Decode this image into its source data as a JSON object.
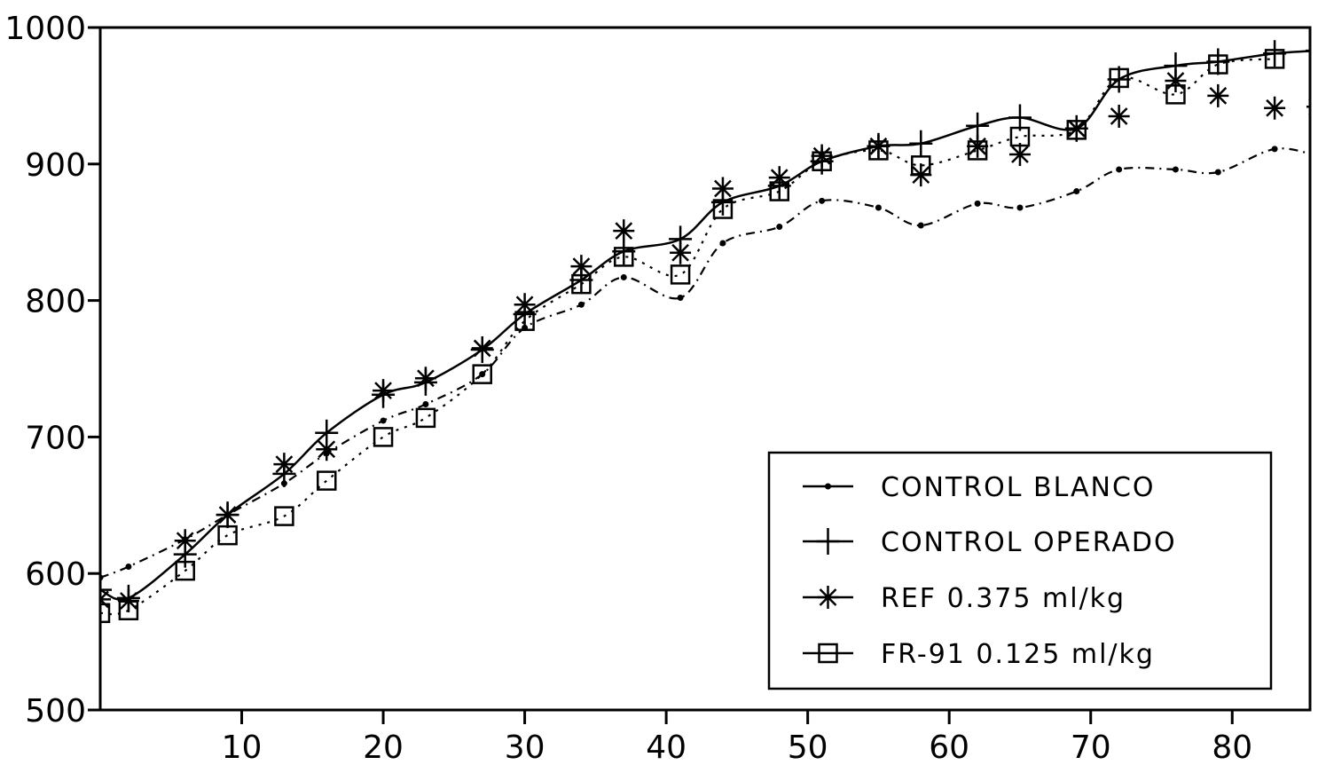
{
  "chart_data": {
    "type": "line",
    "title": "",
    "xlabel": "",
    "ylabel": "",
    "xlim": [
      0,
      85.5
    ],
    "ylim": [
      500,
      1000
    ],
    "x_ticks": [
      10,
      20,
      30,
      40,
      50,
      60,
      70,
      80
    ],
    "y_ticks": [
      500,
      600,
      700,
      800,
      900,
      1000
    ],
    "grid": false,
    "legend_position": "bottom-right",
    "series": [
      {
        "name": "CONTROL BLANCO",
        "marker": "dot",
        "line": "dash-dot",
        "color": "#000000",
        "points": [
          [
            0,
            597
          ],
          [
            2,
            605
          ],
          [
            6,
            625
          ],
          [
            9,
            643
          ],
          [
            13,
            666
          ],
          [
            16,
            688
          ],
          [
            20,
            712
          ],
          [
            23,
            724
          ],
          [
            27,
            746
          ],
          [
            30,
            780
          ],
          [
            34,
            797
          ],
          [
            37,
            817
          ],
          [
            41,
            802
          ],
          [
            44,
            842
          ],
          [
            48,
            854
          ],
          [
            51,
            873
          ],
          [
            55,
            868
          ],
          [
            58,
            855
          ],
          [
            62,
            871
          ],
          [
            65,
            868
          ],
          [
            69,
            880
          ],
          [
            72,
            896
          ],
          [
            76,
            896
          ],
          [
            79,
            894
          ],
          [
            83,
            911
          ],
          [
            86,
            906
          ]
        ]
      },
      {
        "name": "CONTROL OPERADO",
        "marker": "plus",
        "line": "solid",
        "color": "#000000",
        "points": [
          [
            0,
            588
          ],
          [
            2,
            582
          ],
          [
            6,
            614
          ],
          [
            9,
            643
          ],
          [
            13,
            673
          ],
          [
            16,
            703
          ],
          [
            20,
            731
          ],
          [
            23,
            740
          ],
          [
            27,
            764
          ],
          [
            30,
            790
          ],
          [
            34,
            815
          ],
          [
            37,
            836
          ],
          [
            41,
            845
          ],
          [
            44,
            872
          ],
          [
            48,
            884
          ],
          [
            51,
            902
          ],
          [
            55,
            913
          ],
          [
            58,
            915
          ],
          [
            62,
            928
          ],
          [
            65,
            934
          ],
          [
            69,
            926
          ],
          [
            72,
            962
          ],
          [
            76,
            972
          ],
          [
            79,
            975
          ],
          [
            83,
            981
          ],
          [
            86,
            983
          ]
        ]
      },
      {
        "name": "REF 0.375 ml/kg",
        "marker": "asterisk",
        "line": "none",
        "color": "#000000",
        "points": [
          [
            0,
            581
          ],
          [
            2,
            580
          ],
          [
            6,
            624
          ],
          [
            9,
            643
          ],
          [
            13,
            680
          ],
          [
            16,
            691
          ],
          [
            20,
            734
          ],
          [
            23,
            743
          ],
          [
            27,
            765
          ],
          [
            30,
            797
          ],
          [
            34,
            825
          ],
          [
            37,
            851
          ],
          [
            41,
            835
          ],
          [
            44,
            882
          ],
          [
            48,
            890
          ],
          [
            51,
            906
          ],
          [
            55,
            913
          ],
          [
            58,
            892
          ],
          [
            62,
            913
          ],
          [
            65,
            907
          ],
          [
            69,
            926
          ],
          [
            72,
            935
          ],
          [
            76,
            961
          ],
          [
            79,
            950
          ],
          [
            83,
            941
          ],
          [
            86,
            942
          ]
        ]
      },
      {
        "name": "FR-91 0.125 ml/kg",
        "marker": "square",
        "line": "dotted",
        "color": "#000000",
        "points": [
          [
            0,
            571
          ],
          [
            2,
            573
          ],
          [
            6,
            602
          ],
          [
            9,
            628
          ],
          [
            13,
            642
          ],
          [
            16,
            668
          ],
          [
            20,
            700
          ],
          [
            23,
            714
          ],
          [
            27,
            746
          ],
          [
            30,
            785
          ],
          [
            34,
            812
          ],
          [
            37,
            832
          ],
          [
            41,
            819
          ],
          [
            44,
            867
          ],
          [
            48,
            880
          ],
          [
            51,
            902
          ],
          [
            55,
            910
          ],
          [
            58,
            899
          ],
          [
            62,
            910
          ],
          [
            65,
            920
          ],
          [
            69,
            925
          ],
          [
            72,
            963
          ],
          [
            76,
            951
          ],
          [
            79,
            973
          ],
          [
            83,
            977
          ]
        ]
      }
    ]
  }
}
